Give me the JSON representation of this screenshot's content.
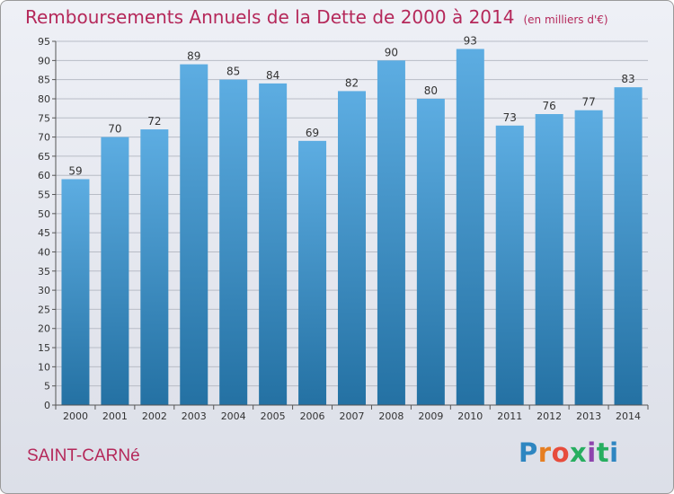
{
  "title": "Remboursements Annuels de la Dette de 2000 à 2014",
  "subtitle": "(en milliers d'€)",
  "location": "SAINT-CARNé",
  "logo": {
    "text": "Proxiti",
    "letters": [
      "P",
      "r",
      "o",
      "x",
      "i",
      "t",
      "i"
    ],
    "colors": [
      "#2e86c1",
      "#e67e22",
      "#e74c3c",
      "#27ae60",
      "#8e44ad",
      "#27ae60",
      "#2e86c1"
    ]
  },
  "colors": {
    "title": "#b5285a",
    "bar_top": "#5dade2",
    "bar_bottom": "#2471a3",
    "grid": "#b8bcc6"
  },
  "chart_data": {
    "type": "bar",
    "categories": [
      "2000",
      "2001",
      "2002",
      "2003",
      "2004",
      "2005",
      "2006",
      "2007",
      "2008",
      "2009",
      "2010",
      "2011",
      "2012",
      "2013",
      "2014"
    ],
    "values": [
      59,
      70,
      72,
      89,
      85,
      84,
      69,
      82,
      90,
      80,
      93,
      73,
      76,
      77,
      83
    ],
    "ylim": [
      0,
      95
    ],
    "yticks": [
      0,
      5,
      10,
      15,
      20,
      25,
      30,
      35,
      40,
      45,
      50,
      55,
      60,
      65,
      70,
      75,
      80,
      85,
      90,
      95
    ],
    "grid": true,
    "data_labels": true
  }
}
